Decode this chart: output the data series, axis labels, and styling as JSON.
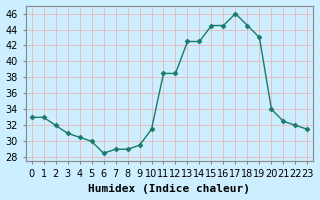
{
  "x": [
    0,
    1,
    2,
    3,
    4,
    5,
    6,
    7,
    8,
    9,
    10,
    11,
    12,
    13,
    14,
    15,
    16,
    17,
    18,
    19,
    20,
    21,
    22,
    23
  ],
  "y": [
    33,
    33,
    32,
    31,
    30.5,
    30,
    28.5,
    29,
    29,
    29.5,
    31.5,
    38.5,
    38.5,
    42.5,
    42.5,
    44.5,
    44.5,
    46,
    44.5,
    43,
    34,
    32.5,
    32,
    31.5
  ],
  "line_color": "#1a7a6a",
  "marker_color": "#1a7a6a",
  "bg_color": "#cceeff",
  "grid_color": "#e8b8b8",
  "xlabel": "Humidex (Indice chaleur)",
  "xlabel_fontsize": 8,
  "ylim": [
    27.5,
    47
  ],
  "xlim": [
    -0.5,
    23.5
  ],
  "yticks": [
    28,
    30,
    32,
    34,
    36,
    38,
    40,
    42,
    44,
    46
  ],
  "xticks": [
    0,
    1,
    2,
    3,
    4,
    5,
    6,
    7,
    8,
    9,
    10,
    11,
    12,
    13,
    14,
    15,
    16,
    17,
    18,
    19,
    20,
    21,
    22,
    23
  ],
  "tick_fontsize": 7
}
